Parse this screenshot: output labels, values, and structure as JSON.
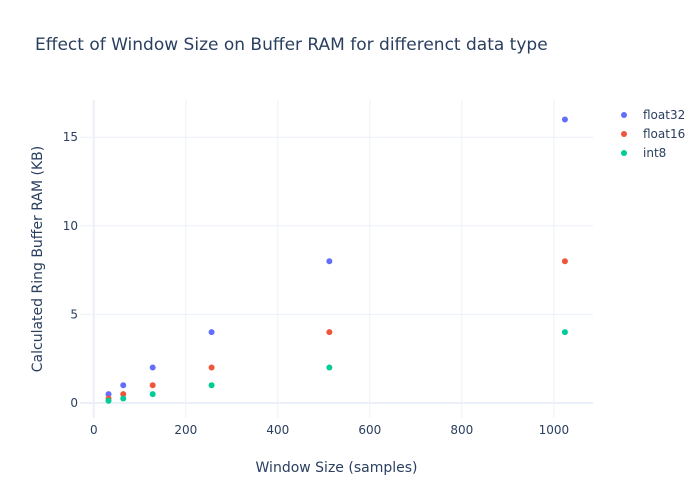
{
  "chart_data": {
    "type": "scatter",
    "title": "Effect of Window Size on Buffer RAM for differenct data type",
    "xlabel": "Window Size (samples)",
    "ylabel": "Calculated Ring Buffer RAM (KB)",
    "xlim": [
      -30,
      1085
    ],
    "ylim": [
      -0.85,
      17.1
    ],
    "xticks": [
      0,
      200,
      400,
      600,
      800,
      1000
    ],
    "yticks": [
      0,
      5,
      10,
      15
    ],
    "grid": true,
    "legend_position": "top-right",
    "x": [
      32,
      64,
      128,
      256,
      512,
      1024
    ],
    "series": [
      {
        "name": "float32",
        "color": "#636efa",
        "values": [
          0.5,
          1,
          2,
          4,
          8,
          16
        ]
      },
      {
        "name": "float16",
        "color": "#EF553B",
        "values": [
          0.25,
          0.5,
          1,
          2,
          4,
          8
        ]
      },
      {
        "name": "int8",
        "color": "#00cc96",
        "values": [
          0.125,
          0.25,
          0.5,
          1,
          2,
          4
        ]
      }
    ]
  }
}
